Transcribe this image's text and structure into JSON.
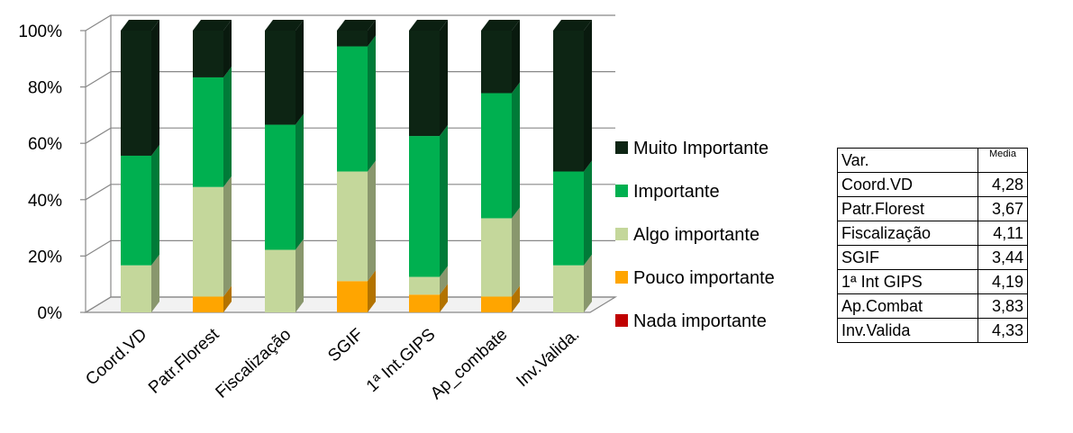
{
  "chart_data": {
    "type": "bar",
    "stacked": true,
    "percent": true,
    "categories": [
      "Coord.VD",
      "Patr.Florest",
      "Fiscalização",
      "SGIF",
      "1ª Int.GIPS",
      "Ap_combate",
      "Inv.Valida."
    ],
    "yticks": [
      "0%",
      "20%",
      "40%",
      "60%",
      "80%",
      "100%"
    ],
    "ylim": [
      0,
      100
    ],
    "grid": true,
    "legend_position": "right",
    "series": [
      {
        "name": "Nada importante",
        "color": "#c00000",
        "values": [
          0,
          0,
          0,
          0,
          0,
          0,
          0
        ]
      },
      {
        "name": "Pouco importante",
        "color": "#ffa500",
        "values": [
          0,
          5.6,
          0,
          11.1,
          6.3,
          5.6,
          0
        ]
      },
      {
        "name": "Algo importante",
        "color": "#c4d79b",
        "values": [
          16.7,
          38.9,
          22.2,
          38.9,
          6.3,
          27.8,
          16.7
        ]
      },
      {
        "name": "Importante",
        "color": "#00b050",
        "values": [
          38.9,
          38.9,
          44.4,
          44.4,
          50,
          44.4,
          33.3
        ]
      },
      {
        "name": "Muito Importante",
        "color": "#0d2514",
        "values": [
          44.4,
          16.6,
          33.4,
          5.6,
          37.4,
          22.2,
          50
        ]
      }
    ]
  },
  "table": {
    "headers": [
      "Var.",
      "Media"
    ],
    "rows": [
      [
        "Coord.VD",
        "4,28"
      ],
      [
        "Patr.Florest",
        "3,67"
      ],
      [
        "Fiscalização",
        "4,11"
      ],
      [
        "SGIF",
        "3,44"
      ],
      [
        "1ª Int GIPS",
        "4,19"
      ],
      [
        "Ap.Combat",
        "3,83"
      ],
      [
        "Inv.Valida",
        "4,33"
      ]
    ]
  }
}
